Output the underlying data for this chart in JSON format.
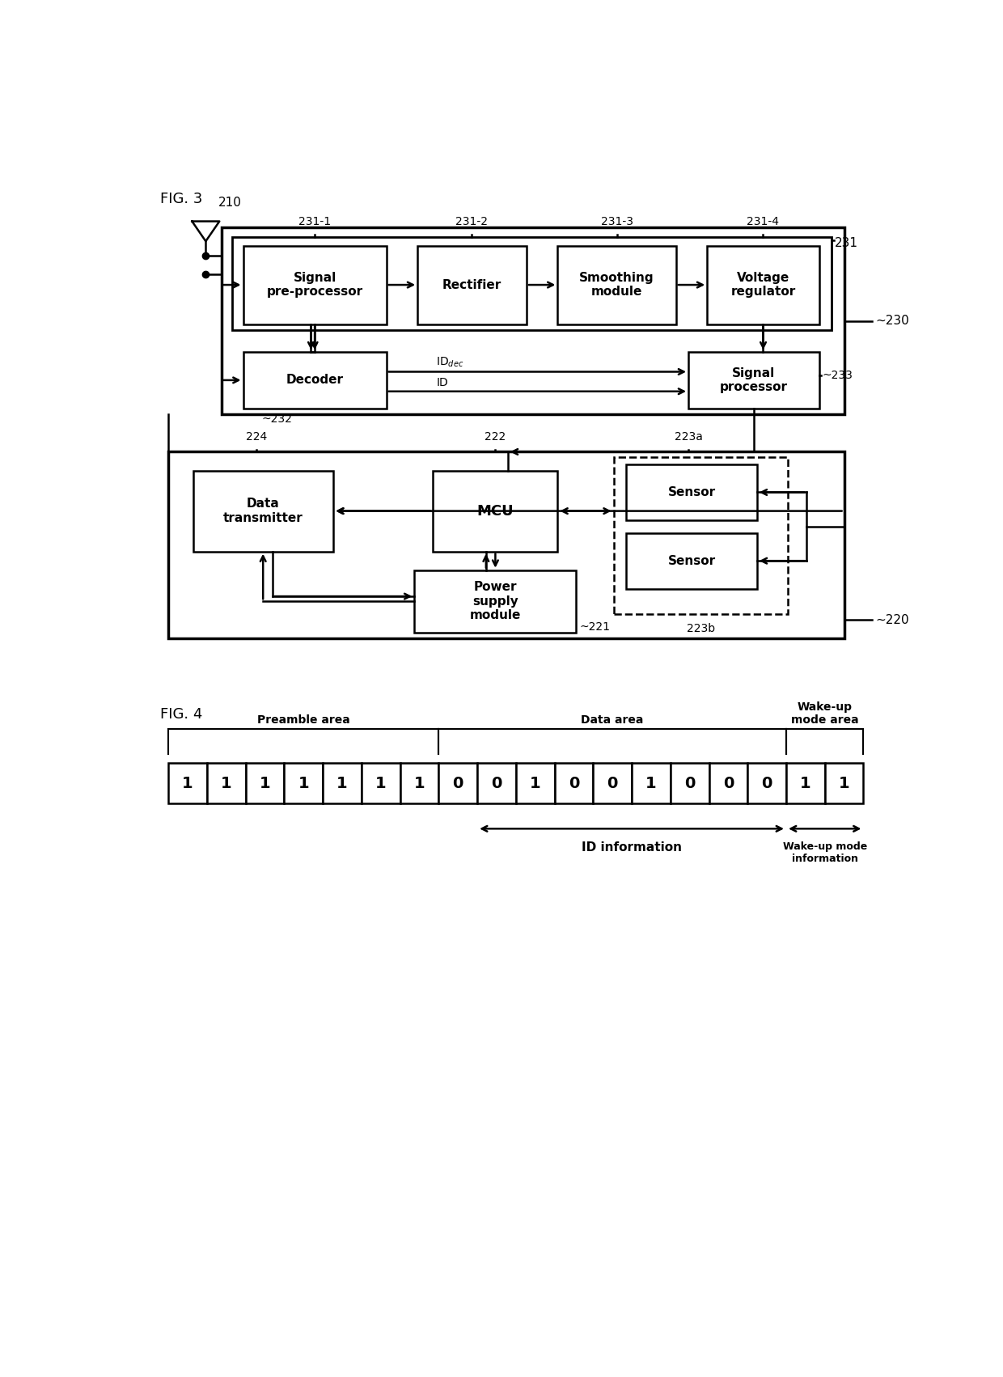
{
  "fig_width": 12.4,
  "fig_height": 17.02,
  "bg_color": "#ffffff",
  "fig3_title": "FIG. 3",
  "fig4_title": "FIG. 4",
  "bit_values": [
    "1",
    "1",
    "1",
    "1",
    "1",
    "1",
    "1",
    "0",
    "0",
    "1",
    "0",
    "0",
    "1",
    "0",
    "0",
    "0",
    "1",
    "1"
  ],
  "preamble_label": "Preamble area",
  "data_label": "Data area",
  "wakeup_label": "Wake-up\nmode area",
  "id_info_label": "ID information",
  "wakeup_info_label": "Wake-up mode\ninformation",
  "label_210": "210",
  "label_231_1": "231-1",
  "label_231_2": "231-2",
  "label_231_3": "231-3",
  "label_231_4": "231-4",
  "label_231": "231",
  "label_230": "230",
  "label_233": "233",
  "label_232": "232",
  "label_224": "224",
  "label_222": "222",
  "label_223a": "223a",
  "label_223b": "223b",
  "label_221": "221",
  "label_220": "220",
  "text_signal_pre": "Signal\npre-processor",
  "text_rectifier": "Rectifier",
  "text_smoothing": "Smoothing\nmodule",
  "text_voltage": "Voltage\nregulator",
  "text_decoder": "Decoder",
  "text_signal_proc": "Signal\nprocessor",
  "text_data_tx": "Data\ntransmitter",
  "text_mcu": "MCU",
  "text_power": "Power\nsupply\nmodule",
  "text_sensor": "Sensor",
  "text_iddec": "ID",
  "text_id": "ID"
}
